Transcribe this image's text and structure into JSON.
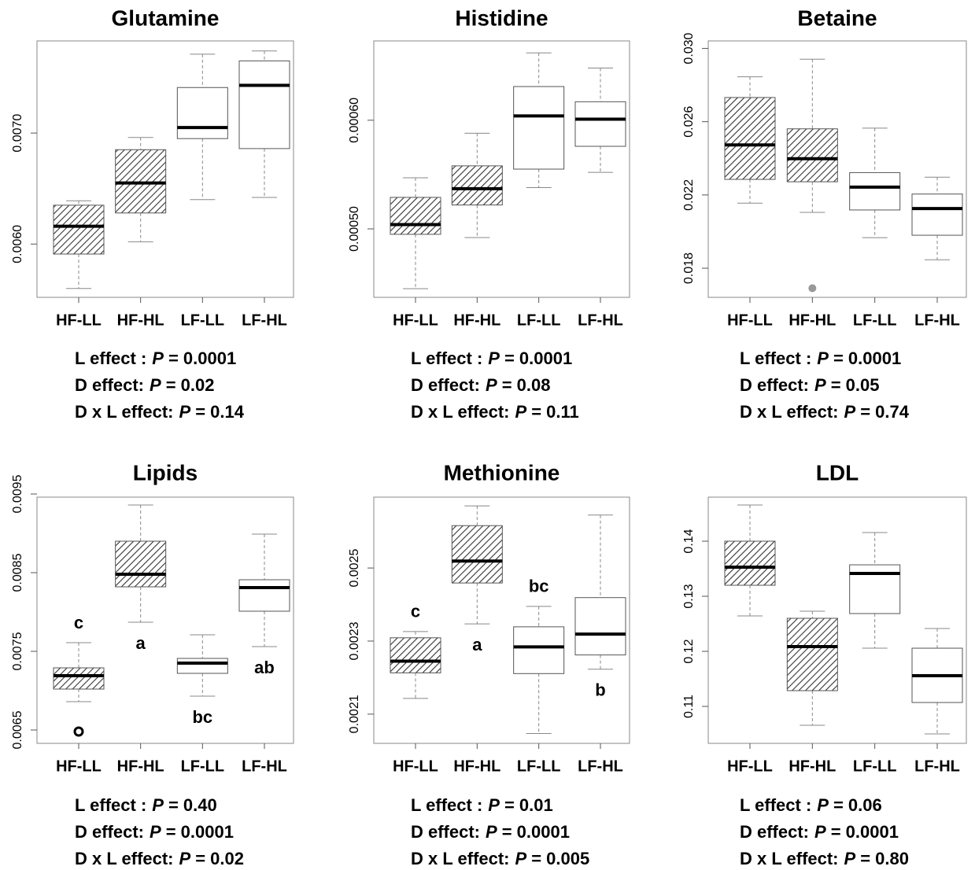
{
  "chart_data": [
    {
      "type": "box",
      "title": "Glutamine",
      "categories": [
        "HF-LL",
        "HF-HL",
        "LF-LL",
        "LF-HL"
      ],
      "box_styles": [
        "hatched",
        "hatched",
        "white",
        "white"
      ],
      "boxes": [
        {
          "min": 0.0056,
          "q1": 0.00591,
          "median": 0.00616,
          "q3": 0.00635,
          "max": 0.00639,
          "outliers": []
        },
        {
          "min": 0.00602,
          "q1": 0.00628,
          "median": 0.00655,
          "q3": 0.00685,
          "max": 0.00696,
          "outliers": []
        },
        {
          "min": 0.0064,
          "q1": 0.00695,
          "median": 0.00705,
          "q3": 0.00741,
          "max": 0.00771,
          "outliers": []
        },
        {
          "min": 0.00642,
          "q1": 0.00686,
          "median": 0.00743,
          "q3": 0.00765,
          "max": 0.00774,
          "outliers": []
        }
      ],
      "ylim": [
        0.00552,
        0.00783
      ],
      "yticks": [
        {
          "value": 0.006,
          "label": "0.0060"
        },
        {
          "value": 0.007,
          "label": "0.0070"
        }
      ],
      "annotations": [
        {
          "effect": "L effect :",
          "stat": "P",
          "value": "= 0.0001"
        },
        {
          "effect": "D effect:",
          "stat": "P",
          "value": "= 0.02"
        },
        {
          "effect": "D x L effect:",
          "stat": "P",
          "value": "= 0.14"
        }
      ]
    },
    {
      "type": "box",
      "title": "Histidine",
      "categories": [
        "HF-LL",
        "HF-HL",
        "LF-LL",
        "LF-HL"
      ],
      "box_styles": [
        "hatched",
        "hatched",
        "white",
        "white"
      ],
      "boxes": [
        {
          "min": 0.000445,
          "q1": 0.000495,
          "median": 0.000504,
          "q3": 0.000529,
          "max": 0.000547,
          "outliers": []
        },
        {
          "min": 0.000492,
          "q1": 0.000522,
          "median": 0.000537,
          "q3": 0.000558,
          "max": 0.000588,
          "outliers": []
        },
        {
          "min": 0.000538,
          "q1": 0.000555,
          "median": 0.000604,
          "q3": 0.000631,
          "max": 0.000662,
          "outliers": []
        },
        {
          "min": 0.000552,
          "q1": 0.000576,
          "median": 0.000601,
          "q3": 0.000617,
          "max": 0.000648,
          "outliers": []
        }
      ],
      "ylim": [
        0.000437,
        0.000673
      ],
      "yticks": [
        {
          "value": 0.0005,
          "label": "0.00050"
        },
        {
          "value": 0.0006,
          "label": "0.00060"
        }
      ],
      "annotations": [
        {
          "effect": "L effect :",
          "stat": "P",
          "value": "= 0.0001"
        },
        {
          "effect": "D effect:",
          "stat": "P",
          "value": "= 0.08"
        },
        {
          "effect": "D x L effect:",
          "stat": "P",
          "value": "= 0.11"
        }
      ]
    },
    {
      "type": "box",
      "title": "Betaine",
      "categories": [
        "HF-LL",
        "HF-HL",
        "LF-LL",
        "LF-HL"
      ],
      "box_styles": [
        "hatched",
        "hatched",
        "white",
        "white"
      ],
      "boxes": [
        {
          "min": 0.02155,
          "q1": 0.02285,
          "median": 0.02473,
          "q3": 0.02732,
          "max": 0.02845,
          "outliers": []
        },
        {
          "min": 0.02105,
          "q1": 0.02272,
          "median": 0.02398,
          "q3": 0.02561,
          "max": 0.02941,
          "outliers": [
            0.01691
          ]
        },
        {
          "min": 0.01967,
          "q1": 0.02118,
          "median": 0.02243,
          "q3": 0.02322,
          "max": 0.02565,
          "outliers": []
        },
        {
          "min": 0.01846,
          "q1": 0.0198,
          "median": 0.02126,
          "q3": 0.02205,
          "max": 0.02297,
          "outliers": []
        }
      ],
      "ylim": [
        0.01641,
        0.03041
      ],
      "yticks": [
        {
          "value": 0.018,
          "label": "0.018"
        },
        {
          "value": 0.022,
          "label": "0.022"
        },
        {
          "value": 0.026,
          "label": "0.026"
        },
        {
          "value": 0.03,
          "label": "0.030"
        }
      ],
      "outlier_color": "#999999",
      "annotations": [
        {
          "effect": "L effect :",
          "stat": "P",
          "value": "= 0.0001"
        },
        {
          "effect": "D effect:",
          "stat": "P",
          "value": "= 0.05"
        },
        {
          "effect": "D x L effect:",
          "stat": "P",
          "value": "= 0.74"
        }
      ]
    },
    {
      "type": "box",
      "title": "Lipids",
      "categories": [
        "HF-LL",
        "HF-HL",
        "LF-LL",
        "LF-HL"
      ],
      "box_styles": [
        "hatched",
        "hatched",
        "white",
        "white"
      ],
      "boxes": [
        {
          "min": 0.00686,
          "q1": 0.00702,
          "median": 0.00719,
          "q3": 0.00729,
          "max": 0.00761,
          "outliers": [
            0.00648
          ]
        },
        {
          "min": 0.00787,
          "q1": 0.00832,
          "median": 0.00848,
          "q3": 0.0089,
          "max": 0.00936,
          "outliers": []
        },
        {
          "min": 0.00693,
          "q1": 0.00722,
          "median": 0.00735,
          "q3": 0.00741,
          "max": 0.00771,
          "outliers": []
        },
        {
          "min": 0.00756,
          "q1": 0.00801,
          "median": 0.00831,
          "q3": 0.00841,
          "max": 0.00899,
          "outliers": []
        }
      ],
      "ylim": [
        0.00633,
        0.00946
      ],
      "yticks": [
        {
          "value": 0.0065,
          "label": "0.0065"
        },
        {
          "value": 0.0075,
          "label": "0.0075"
        },
        {
          "value": 0.0085,
          "label": "0.0085"
        },
        {
          "value": 0.0095,
          "label": "0.0095"
        }
      ],
      "outlier_color": "#000000",
      "letters": [
        "c",
        "a",
        "bc",
        "ab"
      ],
      "annotations": [
        {
          "effect": "L effect :",
          "stat": "P",
          "value": "= 0.40"
        },
        {
          "effect": "D effect:",
          "stat": "P",
          "value": "= 0.0001"
        },
        {
          "effect": "D x L effect:",
          "stat": "P",
          "value": "= 0.02"
        }
      ]
    },
    {
      "type": "box",
      "title": "Methionine",
      "categories": [
        "HF-LL",
        "HF-HL",
        "LF-LL",
        "LF-HL"
      ],
      "box_styles": [
        "hatched",
        "hatched",
        "white",
        "white"
      ],
      "boxes": [
        {
          "min": 0.002143,
          "q1": 0.002213,
          "median": 0.002245,
          "q3": 0.002309,
          "max": 0.002326,
          "outliers": []
        },
        {
          "min": 0.002347,
          "q1": 0.002459,
          "median": 0.002519,
          "q3": 0.002616,
          "max": 0.00267,
          "outliers": []
        },
        {
          "min": 0.002047,
          "q1": 0.002211,
          "median": 0.002284,
          "q3": 0.002339,
          "max": 0.002395,
          "outliers": []
        },
        {
          "min": 0.002223,
          "q1": 0.002262,
          "median": 0.002319,
          "q3": 0.002419,
          "max": 0.002645,
          "outliers": []
        }
      ],
      "ylim": [
        0.00202,
        0.002694
      ],
      "yticks": [
        {
          "value": 0.0021,
          "label": "0.0021"
        },
        {
          "value": 0.0023,
          "label": "0.0023"
        },
        {
          "value": 0.0025,
          "label": "0.0025"
        }
      ],
      "letters": [
        "c",
        "a",
        "bc",
        "b"
      ],
      "annotations": [
        {
          "effect": "L effect :",
          "stat": "P",
          "value": "= 0.01"
        },
        {
          "effect": "D effect:",
          "stat": "P",
          "value": "= 0.0001"
        },
        {
          "effect": "D x L effect:",
          "stat": "P",
          "value": "= 0.005"
        }
      ]
    },
    {
      "type": "box",
      "title": "LDL",
      "categories": [
        "HF-LL",
        "HF-HL",
        "LF-LL",
        "LF-HL"
      ],
      "box_styles": [
        "hatched",
        "hatched",
        "white",
        "white"
      ],
      "boxes": [
        {
          "min": 0.12643,
          "q1": 0.132,
          "median": 0.13529,
          "q3": 0.14,
          "max": 0.14657,
          "outliers": []
        },
        {
          "min": 0.10657,
          "q1": 0.11286,
          "median": 0.12086,
          "q3": 0.126,
          "max": 0.12729,
          "outliers": []
        },
        {
          "min": 0.12057,
          "q1": 0.12686,
          "median": 0.13414,
          "q3": 0.13571,
          "max": 0.14157,
          "outliers": []
        },
        {
          "min": 0.105,
          "q1": 0.11071,
          "median": 0.11557,
          "q3": 0.12057,
          "max": 0.12414,
          "outliers": []
        }
      ],
      "ylim": [
        0.10329,
        0.148
      ],
      "yticks": [
        0.11,
        0.12,
        0.13,
        0.14
      ],
      "annotations": [
        {
          "effect": "L effect :",
          "stat": "P",
          "value": "= 0.06"
        },
        {
          "effect": "D effect:",
          "stat": "P",
          "value": "= 0.0001"
        },
        {
          "effect": "D x L effect:",
          "stat": "P",
          "value": "= 0.80"
        }
      ]
    }
  ]
}
